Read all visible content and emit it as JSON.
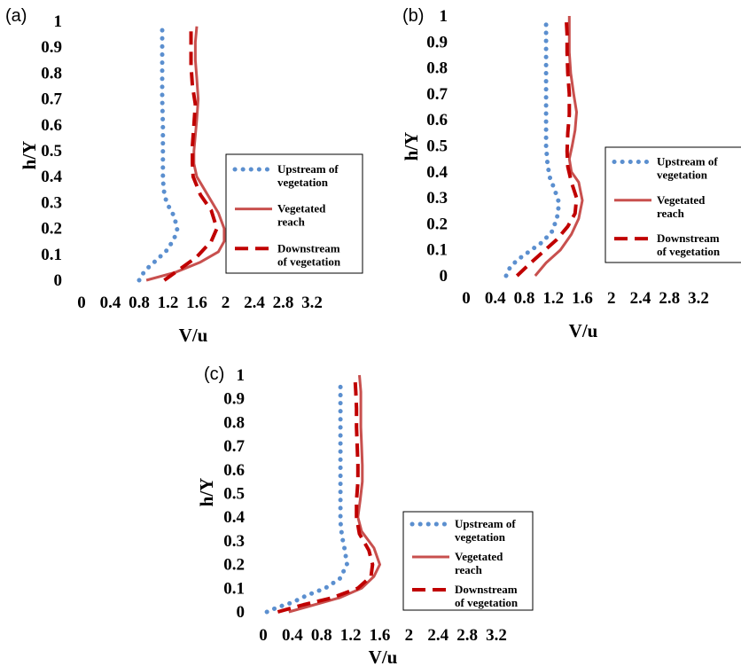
{
  "colors": {
    "upstream": "#5B8FCF",
    "vegetated": "#C8504E",
    "downstream": "#C00000"
  },
  "chart_data": [
    {
      "type": "line",
      "panel": "(a)",
      "xlabel": "V/u",
      "ylabel": "h/Y",
      "xlim": [
        0,
        3.2
      ],
      "ylim": [
        0,
        1
      ],
      "x_ticks": [
        "0",
        "0.4",
        "0.8",
        "1.2",
        "1.6",
        "2",
        "2.4",
        "2.8",
        "3.2"
      ],
      "y_ticks": [
        "0",
        "0.1",
        "0.2",
        "0.3",
        "0.4",
        "0.5",
        "0.6",
        "0.7",
        "0.8",
        "0.9",
        "1"
      ],
      "legend": [
        "Upstream of vegetation",
        "Vegetated reach",
        "Downstream of vegetation"
      ],
      "legend_lines": [
        [
          "Upstream of",
          "vegetation"
        ],
        [
          "Vegetated",
          "reach"
        ],
        [
          "Downstream",
          "of vegetation"
        ]
      ],
      "series": [
        {
          "name": "Upstream of vegetation",
          "style": "dotted",
          "x": [
            0.8,
            0.85,
            0.93,
            1.05,
            1.2,
            1.3,
            1.33,
            1.28,
            1.18,
            1.14,
            1.13,
            1.13,
            1.13,
            1.12,
            1.12,
            1.12,
            1.12
          ],
          "y": [
            0,
            0.025,
            0.05,
            0.08,
            0.12,
            0.17,
            0.2,
            0.25,
            0.3,
            0.35,
            0.4,
            0.5,
            0.6,
            0.7,
            0.8,
            0.9,
            0.97
          ]
        },
        {
          "name": "Vegetated reach",
          "style": "solid",
          "x": [
            0.9,
            1.3,
            1.65,
            1.9,
            1.98,
            1.98,
            1.9,
            1.75,
            1.6,
            1.56,
            1.56,
            1.58,
            1.6,
            1.62,
            1.6,
            1.58,
            1.58,
            1.6
          ],
          "y": [
            0,
            0.03,
            0.07,
            0.11,
            0.15,
            0.2,
            0.26,
            0.33,
            0.4,
            0.45,
            0.5,
            0.56,
            0.62,
            0.7,
            0.78,
            0.85,
            0.92,
            0.98
          ]
        },
        {
          "name": "Downstream of vegetation",
          "style": "dashed",
          "x": [
            1.15,
            1.35,
            1.6,
            1.8,
            1.88,
            1.8,
            1.65,
            1.55,
            1.54,
            1.54,
            1.56,
            1.58,
            1.54,
            1.52,
            1.52,
            1.52
          ],
          "y": [
            0,
            0.04,
            0.09,
            0.15,
            0.2,
            0.27,
            0.33,
            0.4,
            0.45,
            0.52,
            0.6,
            0.68,
            0.75,
            0.83,
            0.9,
            0.97
          ]
        }
      ]
    },
    {
      "type": "line",
      "panel": "(b)",
      "xlabel": "V/u",
      "ylabel": "h/Y",
      "xlim": [
        0,
        3.2
      ],
      "ylim": [
        0,
        1
      ],
      "x_ticks": [
        "0",
        "0.4",
        "0.8",
        "1.2",
        "1.6",
        "2",
        "2.4",
        "2.8",
        "3.2"
      ],
      "y_ticks": [
        "0",
        "0.1",
        "0.2",
        "0.3",
        "0.4",
        "0.5",
        "0.6",
        "0.7",
        "0.8",
        "0.9",
        "1"
      ],
      "legend": [
        "Upstream of vegetation",
        "Vegetated reach",
        "Downstream of vegetation"
      ],
      "legend_lines": [
        [
          "Upstream of",
          "vegetation"
        ],
        [
          "Vegetated",
          "reach"
        ],
        [
          "Downstream",
          "of vegetation"
        ]
      ],
      "series": [
        {
          "name": "Upstream of vegetation",
          "style": "dotted",
          "x": [
            0.55,
            0.6,
            0.7,
            0.9,
            1.05,
            1.18,
            1.25,
            1.28,
            1.22,
            1.15,
            1.12,
            1.1,
            1.1,
            1.1,
            1.1,
            1.1,
            1.1
          ],
          "y": [
            0,
            0.03,
            0.06,
            0.1,
            0.13,
            0.17,
            0.22,
            0.28,
            0.33,
            0.38,
            0.43,
            0.5,
            0.6,
            0.7,
            0.8,
            0.9,
            0.97
          ]
        },
        {
          "name": "Vegetated reach",
          "style": "solid",
          "x": [
            0.95,
            1.1,
            1.3,
            1.45,
            1.55,
            1.6,
            1.55,
            1.45,
            1.42,
            1.46,
            1.5,
            1.52,
            1.48,
            1.44,
            1.42,
            1.42,
            1.42
          ],
          "y": [
            0,
            0.05,
            0.1,
            0.16,
            0.22,
            0.29,
            0.36,
            0.4,
            0.45,
            0.5,
            0.56,
            0.63,
            0.7,
            0.78,
            0.86,
            0.93,
            1.0
          ]
        },
        {
          "name": "Downstream of vegetation",
          "style": "dashed",
          "x": [
            0.7,
            0.85,
            1.05,
            1.25,
            1.4,
            1.5,
            1.52,
            1.45,
            1.4,
            1.39,
            1.4,
            1.42,
            1.42,
            1.4,
            1.39,
            1.39,
            1.38
          ],
          "y": [
            0,
            0.04,
            0.09,
            0.14,
            0.19,
            0.24,
            0.3,
            0.36,
            0.42,
            0.48,
            0.55,
            0.62,
            0.7,
            0.78,
            0.86,
            0.93,
            0.98
          ]
        }
      ]
    },
    {
      "type": "line",
      "panel": "(c)",
      "xlabel": "V/u",
      "ylabel": "h/Y",
      "xlim": [
        0,
        3.2
      ],
      "ylim": [
        0,
        1
      ],
      "x_ticks": [
        "0",
        "0.4",
        "0.8",
        "1.2",
        "1.6",
        "2",
        "2.4",
        "2.8",
        "3.2"
      ],
      "y_ticks": [
        "0",
        "0.1",
        "0.2",
        "0.3",
        "0.4",
        "0.5",
        "0.6",
        "0.7",
        "0.8",
        "0.9",
        "1"
      ],
      "legend": [
        "Upstream of vegetation",
        "Vegetated reach",
        "Downstream of vegetation"
      ],
      "legend_lines": [
        [
          "Upstream of",
          "vegetation"
        ],
        [
          "Vegetated",
          "reach"
        ],
        [
          "Downstream",
          "of vegetation"
        ]
      ],
      "series": [
        {
          "name": "Upstream of vegetation",
          "style": "dotted",
          "x": [
            0.05,
            0.2,
            0.4,
            0.6,
            0.85,
            1.05,
            1.15,
            1.12,
            1.08,
            1.06,
            1.06,
            1.06,
            1.06,
            1.06,
            1.06,
            1.06,
            1.06
          ],
          "y": [
            0,
            0.02,
            0.04,
            0.07,
            0.1,
            0.14,
            0.2,
            0.26,
            0.32,
            0.38,
            0.45,
            0.52,
            0.6,
            0.7,
            0.8,
            0.9,
            0.97
          ]
        },
        {
          "name": "Vegetated reach",
          "style": "solid",
          "x": [
            0.35,
            0.7,
            1.05,
            1.35,
            1.52,
            1.6,
            1.52,
            1.35,
            1.3,
            1.33,
            1.36,
            1.36,
            1.35,
            1.34,
            1.34,
            1.34,
            1.32
          ],
          "y": [
            0,
            0.03,
            0.06,
            0.1,
            0.15,
            0.2,
            0.27,
            0.34,
            0.4,
            0.47,
            0.55,
            0.62,
            0.7,
            0.78,
            0.86,
            0.93,
            1.0
          ]
        },
        {
          "name": "Downstream of vegetation",
          "style": "dashed",
          "x": [
            0.2,
            0.55,
            0.95,
            1.3,
            1.48,
            1.5,
            1.45,
            1.32,
            1.28,
            1.28,
            1.3,
            1.3,
            1.29,
            1.28,
            1.28,
            1.27,
            1.26
          ],
          "y": [
            0,
            0.03,
            0.06,
            0.1,
            0.15,
            0.2,
            0.26,
            0.33,
            0.4,
            0.47,
            0.55,
            0.62,
            0.7,
            0.78,
            0.86,
            0.93,
            0.98
          ]
        }
      ]
    }
  ]
}
